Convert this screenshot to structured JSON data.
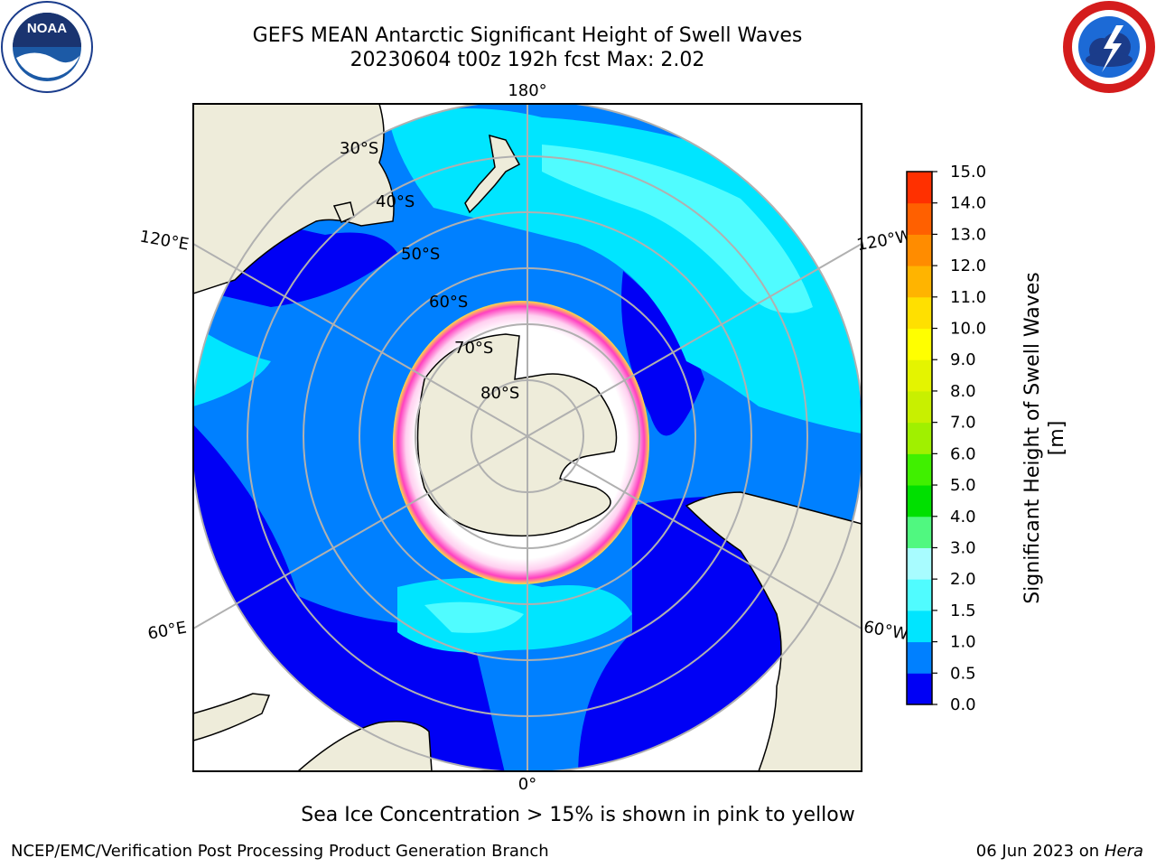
{
  "title": {
    "line1": "GEFS MEAN Antarctic Significant Height of Swell Waves",
    "line2": "20230604 t00z 192h fcst   Max: 2.02"
  },
  "logos": {
    "left": {
      "icon": "noaa-logo",
      "text": "NOAA"
    },
    "right": {
      "icon": "national-weather-service-logo"
    }
  },
  "map": {
    "projection": "south-polar-stereographic",
    "longitude_labels": [
      "180°",
      "120°E",
      "120°W",
      "60°E",
      "60°W",
      "0°"
    ],
    "latitude_labels": [
      "30°S",
      "40°S",
      "50°S",
      "60°S",
      "70°S",
      "80°S"
    ]
  },
  "colorbar": {
    "label": "Significant Height of Swell Waves [m]",
    "ticks": [
      "0.0",
      "0.5",
      "1.0",
      "1.5",
      "2.0",
      "3.0",
      "4.0",
      "5.0",
      "6.0",
      "7.0",
      "8.0",
      "9.0",
      "10.0",
      "11.0",
      "12.0",
      "13.0",
      "14.0",
      "15.0"
    ],
    "colors": [
      "#0000f5",
      "#0080ff",
      "#00e5ff",
      "#50fcff",
      "#a8fcff",
      "#50f880",
      "#00e000",
      "#40f000",
      "#a0f000",
      "#c8f000",
      "#e4f400",
      "#ffff00",
      "#ffe000",
      "#ffb400",
      "#ff8c00",
      "#ff6000",
      "#ff3000"
    ]
  },
  "caption": "Sea Ice Concentration > 15% is shown in pink to yellow",
  "footer": {
    "left": "NCEP/EMC/Verification Post Processing Product Generation Branch",
    "right_date": "06 Jun 2023 on",
    "right_machine": "Hera"
  },
  "colors": {
    "ocean_low": "#0000f5",
    "ocean_mid": "#0080ff",
    "ocean_high": "#00e5ff",
    "ocean_peak": "#50fcff",
    "land": "#eeecda",
    "sea_ice": "#ff40c0",
    "grid": "#b0b0b0"
  }
}
